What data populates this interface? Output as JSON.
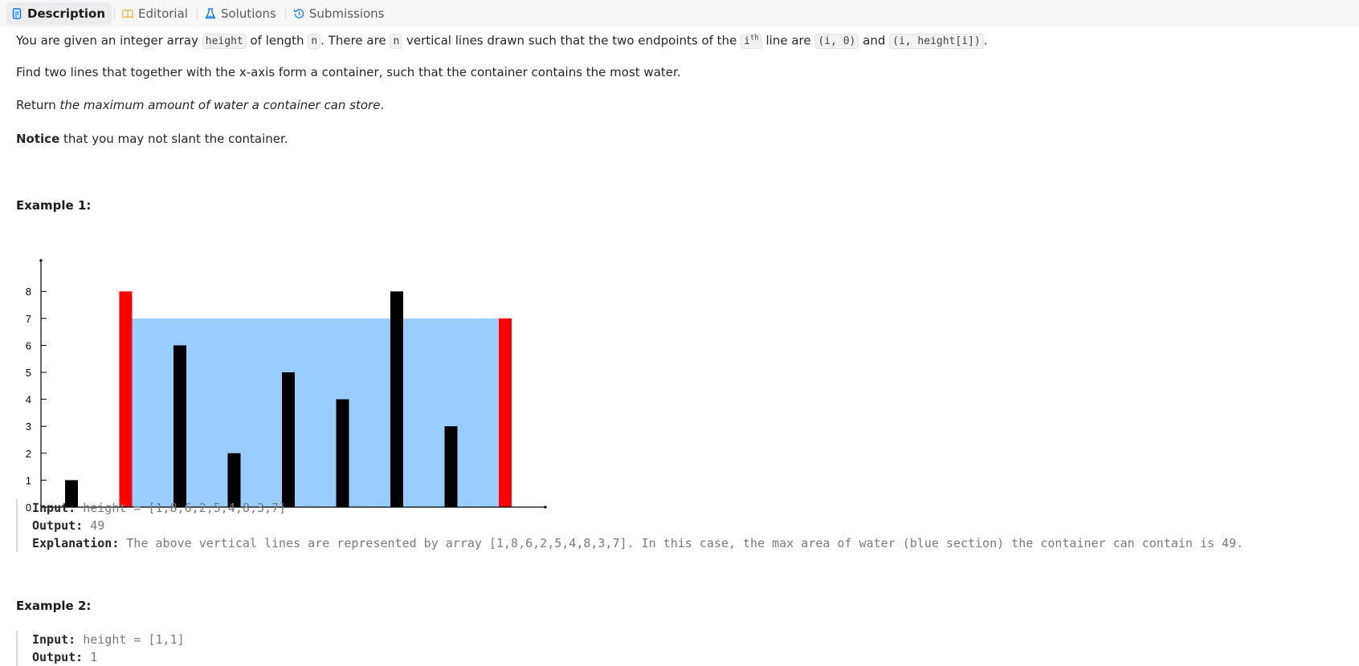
{
  "tabs": [
    {
      "label": "Description",
      "icon": "document-icon",
      "active": true
    },
    {
      "label": "Editorial",
      "icon": "book-icon",
      "active": false
    },
    {
      "label": "Solutions",
      "icon": "flask-icon",
      "active": false
    },
    {
      "label": "Submissions",
      "icon": "history-icon",
      "active": false
    }
  ],
  "problem": {
    "p1": {
      "t1": "You are given an integer array ",
      "c1": "height",
      "t2": " of length ",
      "c2": "n",
      "t3": ". There are ",
      "c3": "n",
      "t4": " vertical lines drawn such that the two endpoints of the ",
      "c4_base": "i",
      "c4_sup": "th",
      "t5": " line are ",
      "c5": "(i, 0)",
      "t6": " and ",
      "c6": "(i, height[i])",
      "t7": "."
    },
    "p2": "Find two lines that together with the x-axis form a container, such that the container contains the most water.",
    "p3": {
      "t1": "Return ",
      "em": "the maximum amount of water a container can store",
      "t2": "."
    },
    "p4": {
      "strong": "Notice",
      "t1": " that you may not slant the container."
    }
  },
  "example1": {
    "title": "Example 1:",
    "input_label": "Input:",
    "input_value": "height = [1,8,6,2,5,4,8,3,7]",
    "output_label": "Output:",
    "output_value": "49",
    "explanation_label": "Explanation:",
    "explanation_value": "The above vertical lines are represented by array [1,8,6,2,5,4,8,3,7]. In this case, the max area of water (blue section) the container can contain is 49."
  },
  "example2": {
    "title": "Example 2:",
    "input_label": "Input:",
    "input_value": "height = [1,1]",
    "output_label": "Output:",
    "output_value": "1"
  },
  "chart_data": {
    "type": "bar",
    "x": [
      1,
      2,
      3,
      4,
      5,
      6,
      7,
      8,
      9
    ],
    "values": [
      1,
      8,
      6,
      2,
      5,
      4,
      8,
      3,
      7
    ],
    "highlighted_indices": [
      1,
      8
    ],
    "water_level": 7,
    "water_range": [
      2,
      9
    ],
    "yticks": [
      0,
      1,
      2,
      3,
      4,
      5,
      6,
      7,
      8
    ],
    "ylim": [
      0,
      9
    ],
    "bar_color": "#000000",
    "highlight_color": "#ff0000",
    "water_color": "#99ccff",
    "title": "",
    "xlabel": "",
    "ylabel": ""
  }
}
